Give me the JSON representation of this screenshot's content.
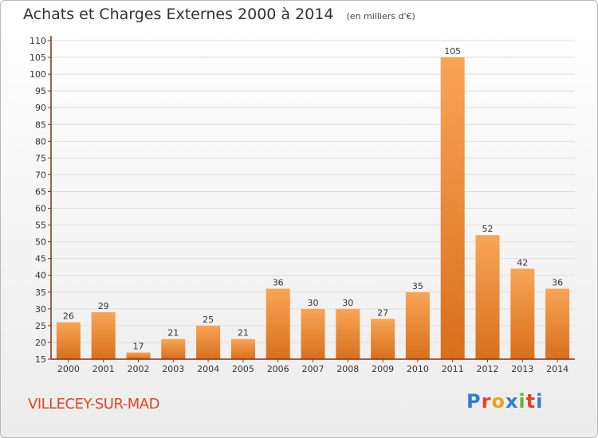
{
  "header": {
    "title": "Achats et Charges Externes 2000 à 2014",
    "unit": "(en milliers d'€)"
  },
  "commune": "VILLECEY-SUR-MAD",
  "logo": {
    "text": "Proxiti",
    "letters": [
      "P",
      "r",
      "o",
      "x",
      "i",
      "t",
      "i"
    ],
    "colors": [
      "#2a7fd4",
      "#e8402a",
      "#f0a020",
      "#2a7fd4",
      "#6cb52d",
      "#e8402a",
      "#2a7fd4"
    ]
  },
  "colors": {
    "bar_light": "#f8a556",
    "bar_dark": "#d86f1c",
    "axis": "#8b2c10",
    "grid": "#dedede",
    "commune": "#d9491e"
  },
  "chart_data": {
    "type": "bar",
    "categories": [
      "2000",
      "2001",
      "2002",
      "2003",
      "2004",
      "2005",
      "2006",
      "2007",
      "2008",
      "2009",
      "2010",
      "2011",
      "2012",
      "2013",
      "2014"
    ],
    "values": [
      26,
      29,
      17,
      21,
      25,
      21,
      36,
      30,
      30,
      27,
      35,
      105,
      52,
      42,
      36
    ],
    "ylim": [
      15,
      110
    ],
    "ytick_step": 5,
    "grid": true,
    "data_labels": true
  }
}
